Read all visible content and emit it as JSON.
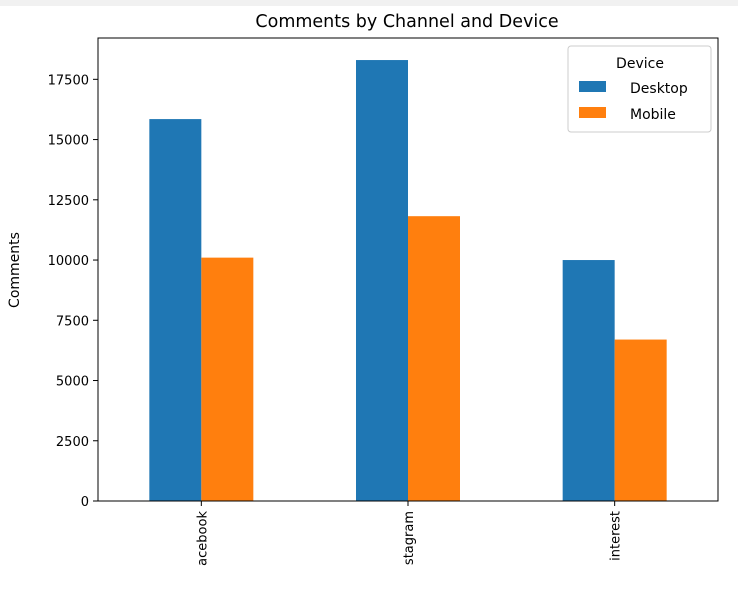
{
  "chart_data": {
    "type": "bar",
    "title": "Comments by Channel and Device",
    "xlabel": "",
    "ylabel": "Comments",
    "categories": [
      "Facebook",
      "Instagram",
      "Pinterest"
    ],
    "category_tick_labels": [
      "acebook",
      "stagram",
      "interest"
    ],
    "series": [
      {
        "name": "Desktop",
        "color": "#1f77b4",
        "values": [
          15850,
          18300,
          10000
        ]
      },
      {
        "name": "Mobile",
        "color": "#ff7f0e",
        "values": [
          10100,
          11820,
          6700
        ]
      }
    ],
    "yticks": [
      0,
      2500,
      5000,
      7500,
      10000,
      12500,
      15000,
      17500
    ],
    "ylim": [
      0,
      19215
    ],
    "grid": false,
    "legend": {
      "title": "Device",
      "placement": "top-right"
    }
  }
}
